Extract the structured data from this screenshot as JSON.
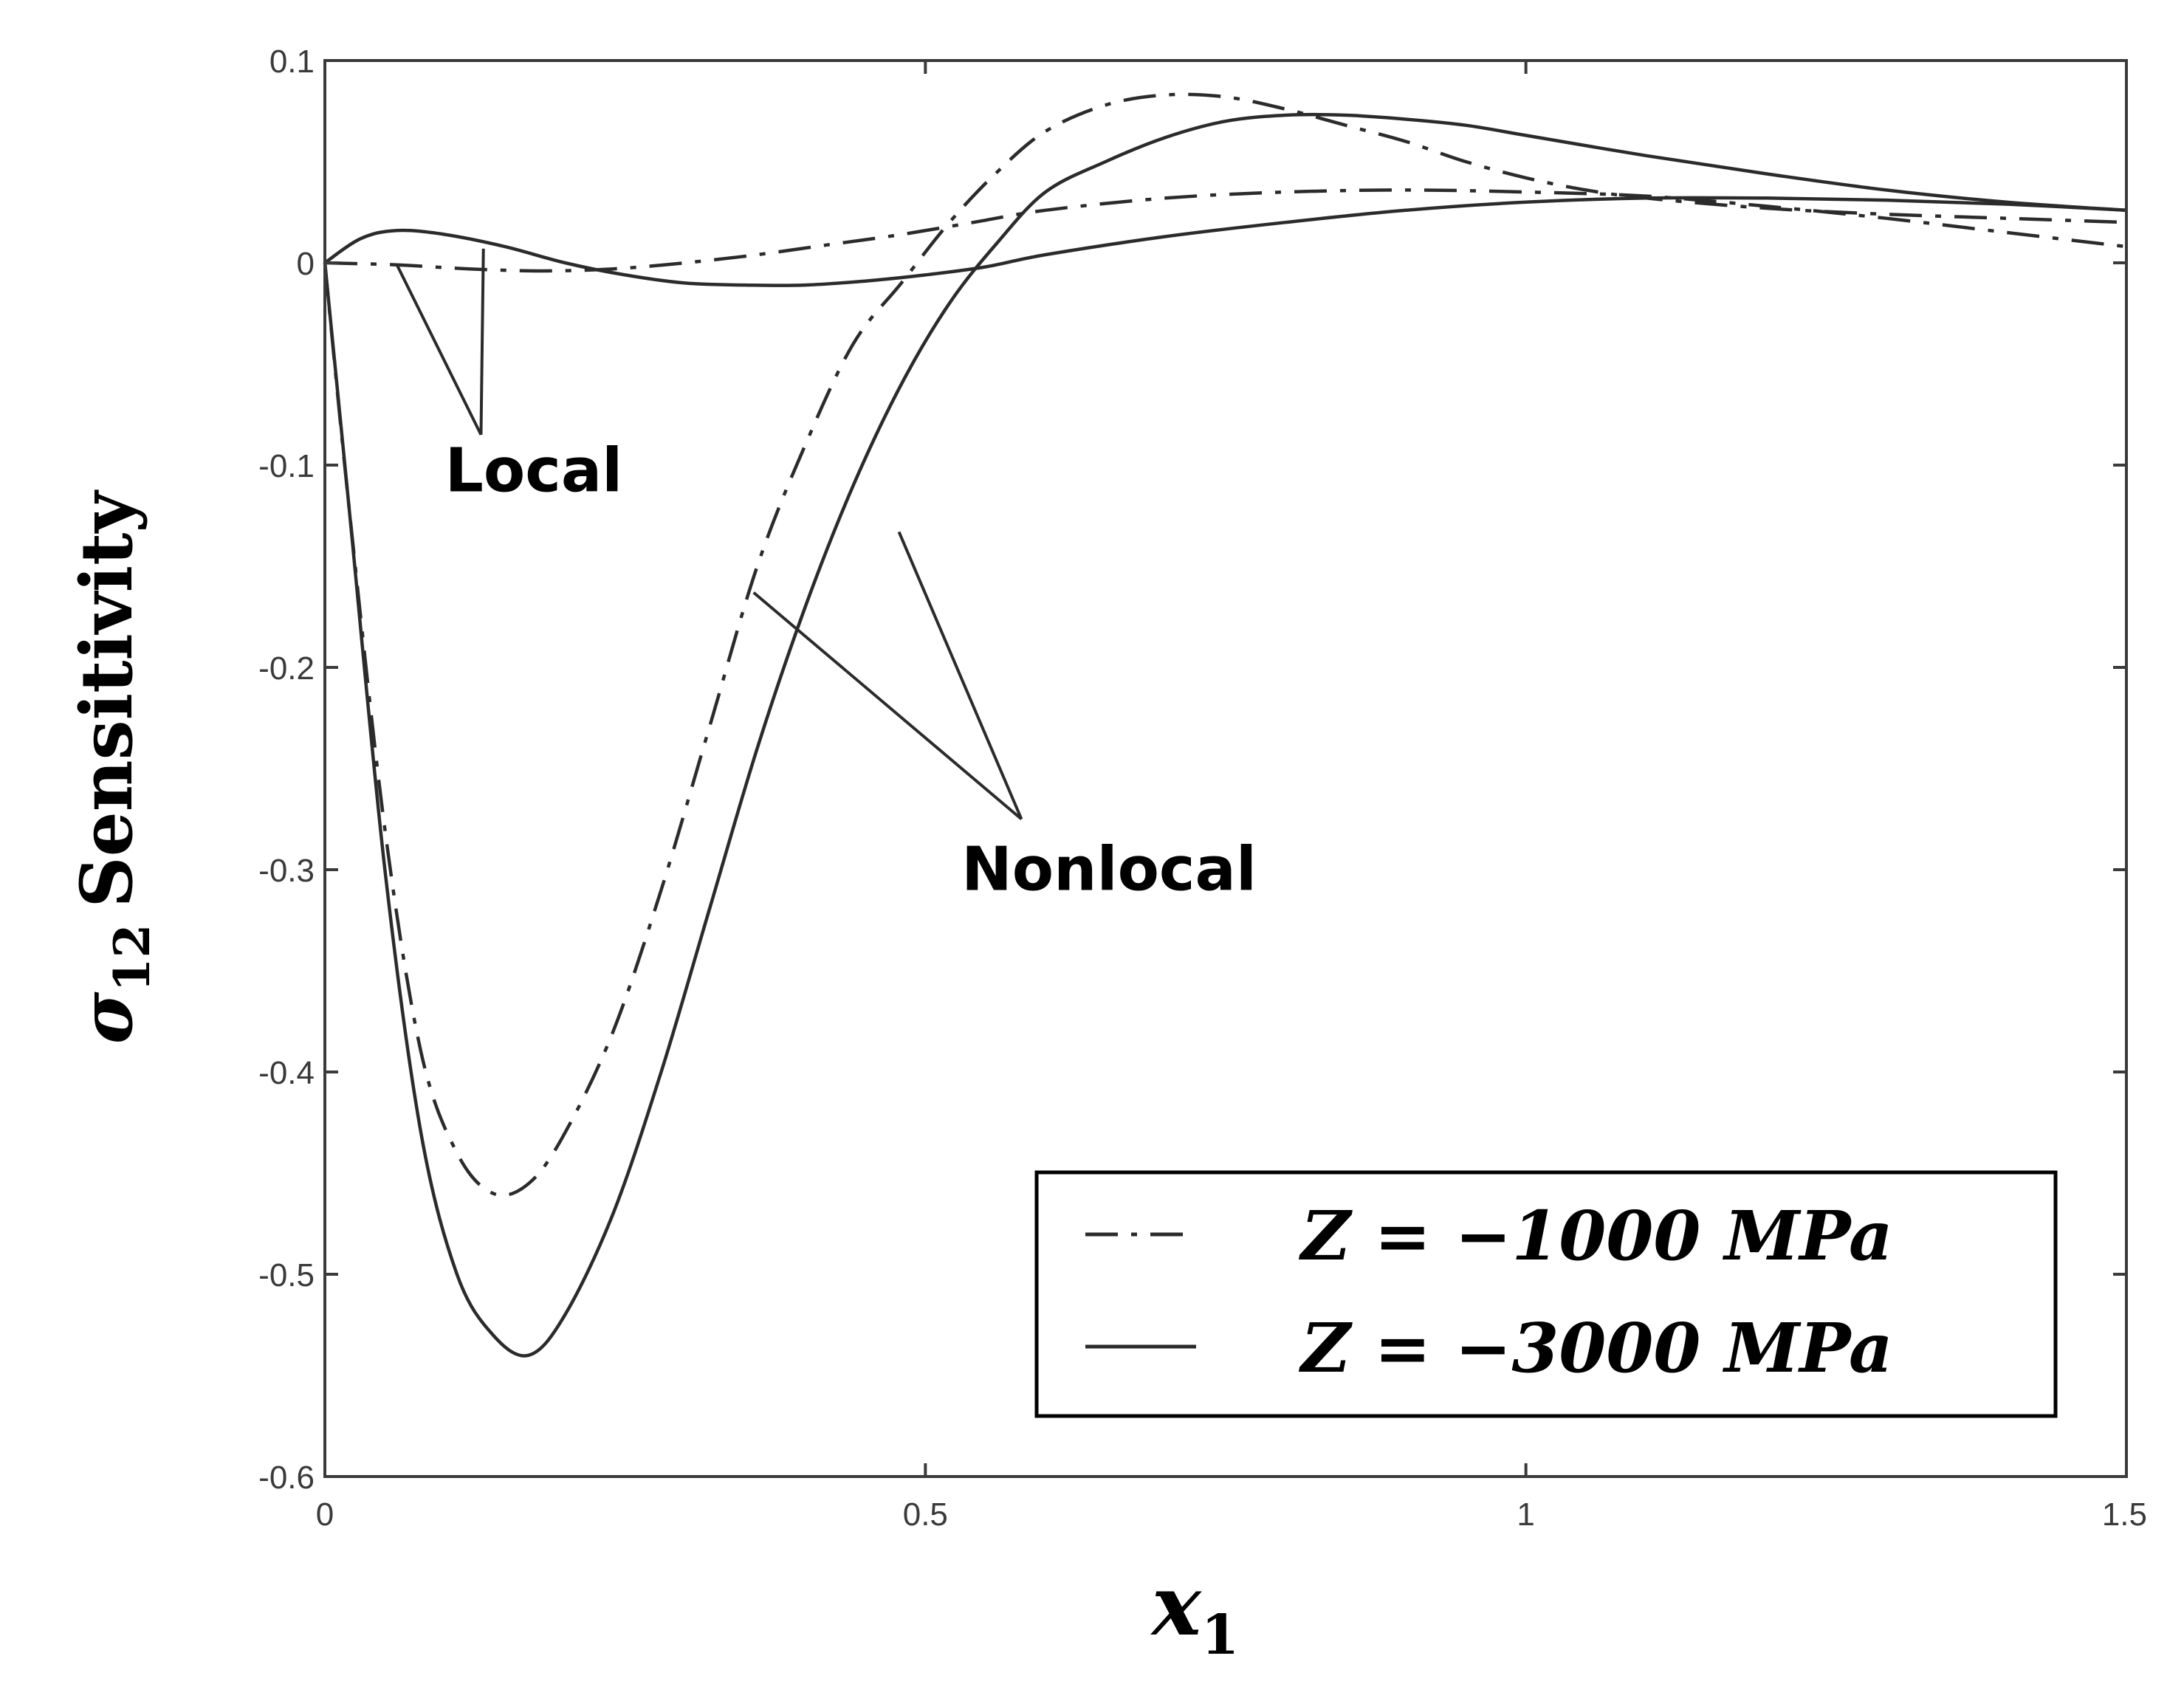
{
  "chart_data": {
    "type": "line",
    "title": "",
    "xlabel": "x",
    "xlabel_sub": "1",
    "ylabel_sigma": "σ",
    "ylabel_sub": "12",
    "ylabel_rest": "Sensitivity",
    "xlim": [
      0,
      1.5
    ],
    "ylim": [
      -0.6,
      0.1
    ],
    "grid": false,
    "x_ticks": [
      0,
      0.5,
      1,
      1.5
    ],
    "x_tick_labels": [
      "0",
      "0.5",
      "1",
      "1.5"
    ],
    "y_ticks": [
      0.1,
      0,
      -0.1,
      -0.2,
      -0.3,
      -0.4,
      -0.5,
      -0.6
    ],
    "y_tick_labels": [
      "0.1",
      "0",
      "-0.1",
      "-0.2",
      "-0.3",
      "-0.4",
      "-0.5",
      "-0.6"
    ],
    "legend_position": "bottom-right",
    "series": [
      {
        "name": "Z = −1000 MPa",
        "model": "Local",
        "style": "dashdot",
        "x": [
          0,
          0.06,
          0.12,
          0.18,
          0.24,
          0.3,
          0.36,
          0.42,
          0.48,
          0.54,
          0.6,
          0.7,
          0.8,
          0.9,
          1.0,
          1.1,
          1.2,
          1.3,
          1.4,
          1.5
        ],
        "y": [
          0,
          -0.001,
          -0.003,
          -0.004,
          -0.003,
          0,
          0.004,
          0.009,
          0.014,
          0.02,
          0.026,
          0.032,
          0.035,
          0.036,
          0.035,
          0.033,
          0.028,
          0.022,
          0.015,
          0.008
        ]
      },
      {
        "name": "Z = −3000 MPa",
        "model": "Local",
        "style": "solid",
        "x": [
          0,
          0.03,
          0.06,
          0.1,
          0.15,
          0.2,
          0.25,
          0.3,
          0.35,
          0.4,
          0.45,
          0.5,
          0.55,
          0.6,
          0.7,
          0.8,
          0.9,
          1.0,
          1.1,
          1.2,
          1.3,
          1.4,
          1.5
        ],
        "y": [
          0,
          0.012,
          0.016,
          0.014,
          0.008,
          0.0,
          -0.006,
          -0.01,
          -0.011,
          -0.011,
          -0.009,
          -0.006,
          -0.002,
          0.004,
          0.013,
          0.02,
          0.026,
          0.03,
          0.032,
          0.032,
          0.031,
          0.029,
          0.026
        ]
      },
      {
        "name": "Z = −1000 MPa",
        "model": "Nonlocal",
        "style": "dashdot",
        "x": [
          0,
          0.02,
          0.05,
          0.08,
          0.11,
          0.14,
          0.17,
          0.2,
          0.24,
          0.28,
          0.32,
          0.36,
          0.4,
          0.44,
          0.48,
          0.52,
          0.56,
          0.6,
          0.65,
          0.7,
          0.75,
          0.8,
          0.85,
          0.9,
          0.95,
          1.0,
          1.05,
          1.1,
          1.2,
          1.3,
          1.4,
          1.5
        ],
        "y": [
          0,
          -0.12,
          -0.28,
          -0.39,
          -0.44,
          -0.46,
          -0.455,
          -0.43,
          -0.38,
          -0.31,
          -0.23,
          -0.15,
          -0.09,
          -0.04,
          -0.01,
          0.02,
          0.045,
          0.065,
          0.078,
          0.083,
          0.082,
          0.076,
          0.068,
          0.06,
          0.05,
          0.042,
          0.036,
          0.032,
          0.027,
          0.024,
          0.022,
          0.02
        ]
      },
      {
        "name": "Z = −3000 MPa",
        "model": "Nonlocal",
        "style": "solid",
        "x": [
          0,
          0.02,
          0.05,
          0.08,
          0.11,
          0.14,
          0.17,
          0.2,
          0.24,
          0.28,
          0.32,
          0.36,
          0.4,
          0.44,
          0.48,
          0.52,
          0.56,
          0.6,
          0.65,
          0.7,
          0.75,
          0.8,
          0.85,
          0.9,
          0.95,
          1.0,
          1.1,
          1.2,
          1.3,
          1.4,
          1.5
        ],
        "y": [
          0,
          -0.12,
          -0.3,
          -0.43,
          -0.5,
          -0.53,
          -0.54,
          -0.52,
          -0.47,
          -0.4,
          -0.32,
          -0.24,
          -0.17,
          -0.11,
          -0.06,
          -0.02,
          0.01,
          0.035,
          0.05,
          0.062,
          0.07,
          0.073,
          0.073,
          0.071,
          0.068,
          0.063,
          0.053,
          0.044,
          0.036,
          0.03,
          0.026
        ]
      }
    ],
    "annotations": [
      {
        "text": "Local",
        "anchor": [
          0.1,
          -0.113
        ],
        "pointers": [
          [
            0.06,
            -0.001
          ],
          [
            0.132,
            0.007
          ]
        ],
        "tail": [
          0.13,
          -0.085
        ]
      },
      {
        "text": "Nonlocal",
        "anchor": [
          0.53,
          -0.31
        ],
        "pointers": [
          [
            0.357,
            -0.163
          ],
          [
            0.478,
            -0.133
          ]
        ],
        "tail": [
          0.58,
          -0.275
        ]
      }
    ]
  },
  "legend": {
    "items": [
      {
        "label": "Z = −1000 MPa",
        "style": "dashdot"
      },
      {
        "label": "Z = −3000 MPa",
        "style": "solid"
      }
    ]
  },
  "colors": {
    "line": "#2b2b2b",
    "axis": "#3a3a3a",
    "text": "#000000",
    "background": "#ffffff"
  }
}
